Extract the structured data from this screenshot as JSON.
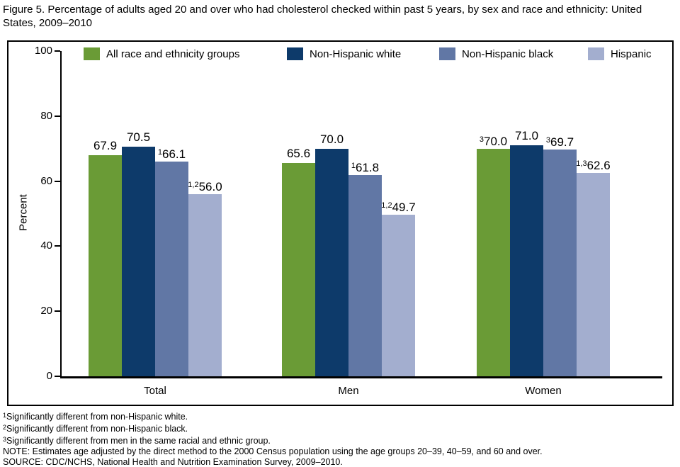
{
  "title": "Figure 5. Percentage of adults aged 20 and over who had cholesterol checked within past 5 years, by sex and race and ethnicity: United States, 2009–2010",
  "chart_data": {
    "type": "bar",
    "title": "Percentage of adults aged 20 and over who had cholesterol checked within past 5 years, by sex and race and ethnicity: United States, 2009–2010",
    "xlabel": "",
    "ylabel": "Percent",
    "ylim": [
      0,
      100
    ],
    "yticks": [
      0,
      20,
      40,
      60,
      80,
      100
    ],
    "grid": false,
    "legend_position": "top",
    "categories": [
      "Total",
      "Men",
      "Women"
    ],
    "series": [
      {
        "name": "All race and ethnicity groups",
        "color": "#6a9b36",
        "values": [
          67.9,
          65.6,
          70.0
        ],
        "labels": [
          {
            "sup": "",
            "text": "67.9"
          },
          {
            "sup": "",
            "text": "65.6"
          },
          {
            "sup": "3",
            "text": "70.0"
          }
        ]
      },
      {
        "name": "Non-Hispanic white",
        "color": "#0d3a6a",
        "values": [
          70.5,
          70.0,
          71.0
        ],
        "labels": [
          {
            "sup": "",
            "text": "70.5"
          },
          {
            "sup": "",
            "text": "70.0"
          },
          {
            "sup": "",
            "text": "71.0"
          }
        ]
      },
      {
        "name": "Non-Hispanic black",
        "color": "#6177a5",
        "values": [
          66.1,
          61.8,
          69.7
        ],
        "labels": [
          {
            "sup": "1",
            "text": "66.1"
          },
          {
            "sup": "1",
            "text": "61.8"
          },
          {
            "sup": "3",
            "text": "69.7"
          }
        ]
      },
      {
        "name": "Hispanic",
        "color": "#a3aecf",
        "values": [
          56.0,
          49.7,
          62.6
        ],
        "labels": [
          {
            "sup": "1,2",
            "text": "56.0"
          },
          {
            "sup": "1,2",
            "text": "49.7"
          },
          {
            "sup": "1,3",
            "text": "62.6"
          }
        ]
      }
    ]
  },
  "footnotes": [
    {
      "sup": "1",
      "text": "Significantly different from non-Hispanic white."
    },
    {
      "sup": "2",
      "text": "Significantly different from non-Hispanic black."
    },
    {
      "sup": "3",
      "text": "Significantly different from men in the same racial and ethnic group."
    },
    {
      "sup": "",
      "text": "NOTE: Estimates age adjusted by the direct method to the 2000 Census population using the age groups 20–39, 40–59, and 60 and over."
    },
    {
      "sup": "",
      "text": "SOURCE: CDC/NCHS, National Health and Nutrition Examination Survey, 2009–2010."
    }
  ]
}
